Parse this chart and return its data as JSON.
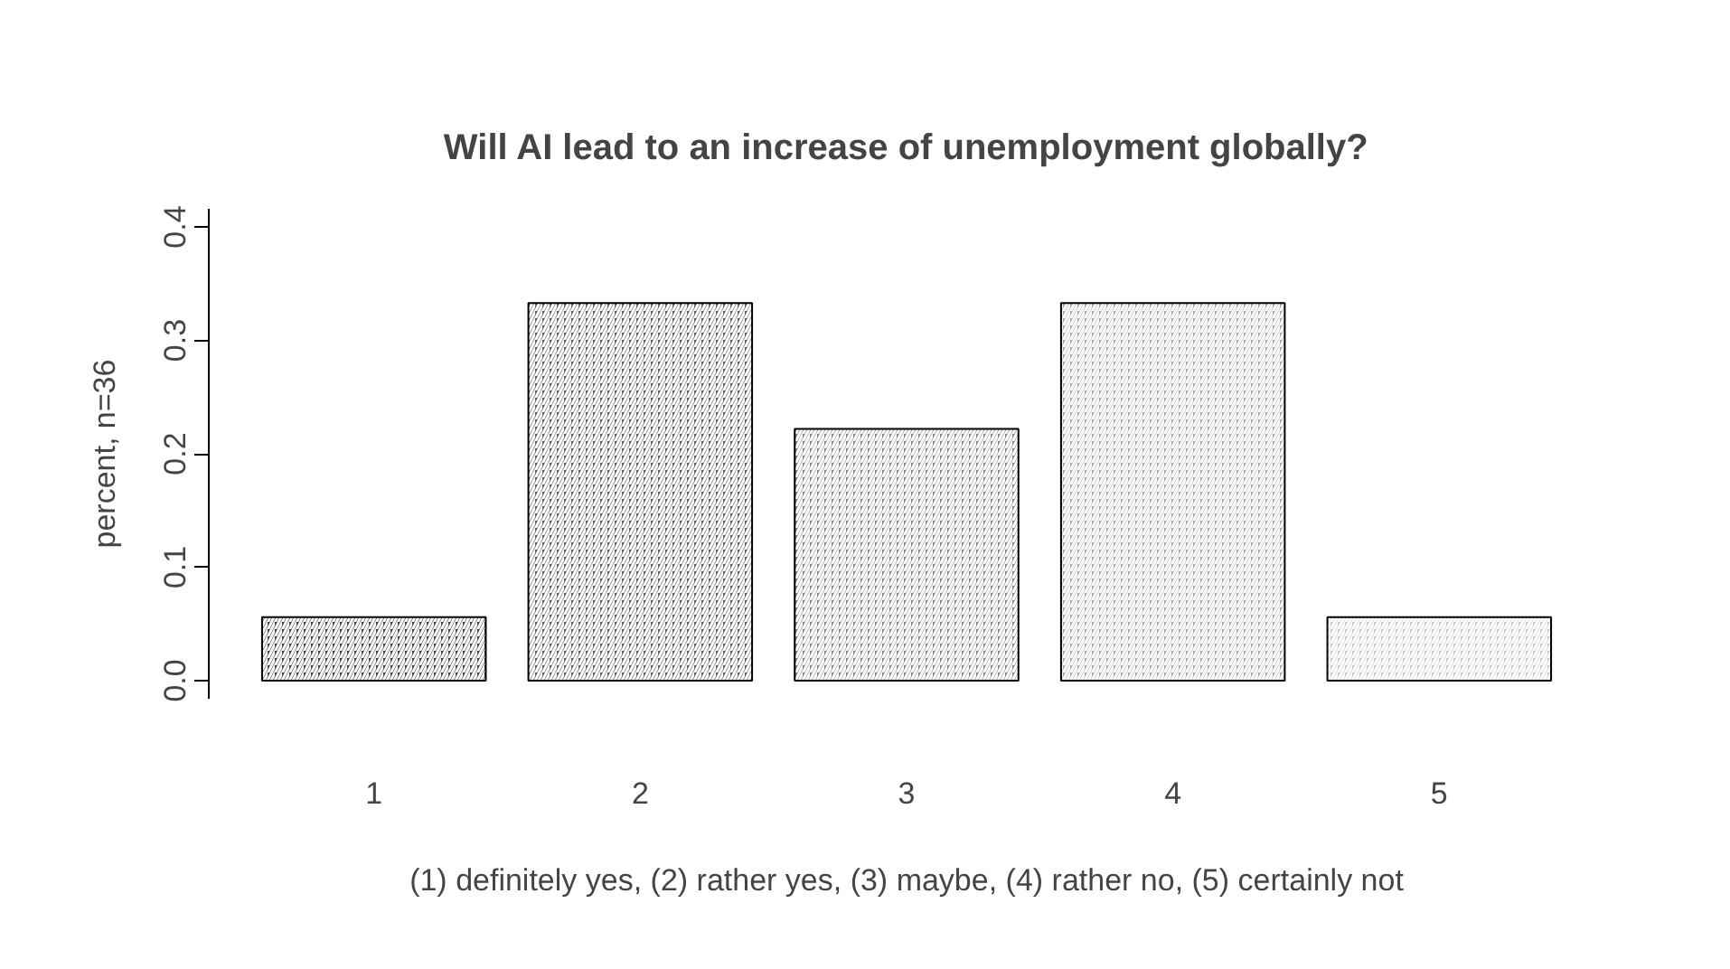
{
  "chart_data": {
    "type": "bar",
    "title": "Will AI lead to an increase of unemployment globally?",
    "ylabel": "percent, n=36",
    "xlabel": "(1) definitely yes, (2) rather yes, (3) maybe, (4) rather no, (5) certainly not",
    "categories": [
      "1",
      "2",
      "3",
      "4",
      "5"
    ],
    "values": [
      0.056,
      0.333,
      0.222,
      0.333,
      0.056
    ],
    "colors": [
      "#3a3a3a",
      "#5e5e5e",
      "#858585",
      "#a8a8a8",
      "#c8c8c8"
    ],
    "ylim": [
      -0.016,
      0.416
    ],
    "yticks": [
      {
        "value": 0,
        "label": "0.0"
      },
      {
        "value": 0.1,
        "label": "0.1"
      },
      {
        "value": 0.2,
        "label": "0.2"
      },
      {
        "value": 0.3,
        "label": "0.3"
      },
      {
        "value": 0.4,
        "label": "0.4"
      }
    ],
    "grid": false
  }
}
